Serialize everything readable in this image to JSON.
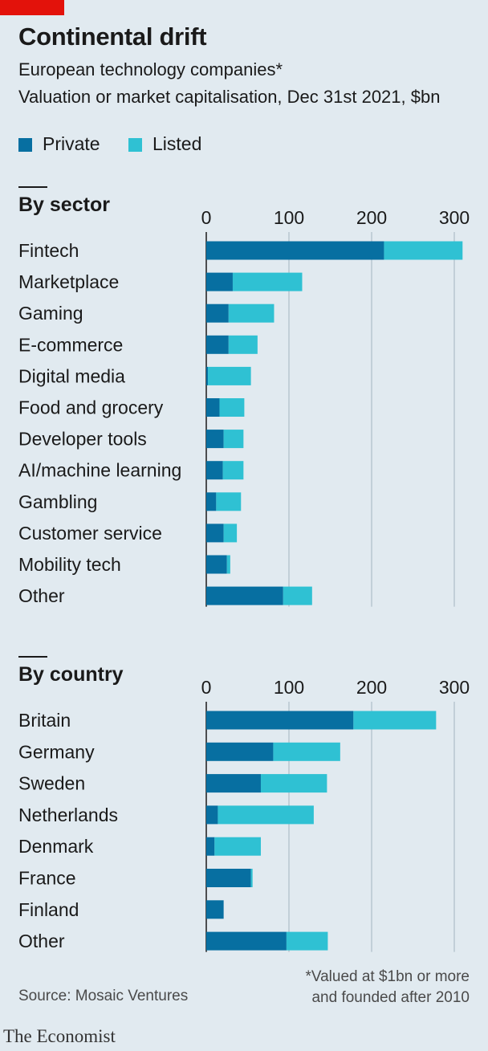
{
  "header": {
    "title": "Continental drift",
    "subtitle": "European technology companies*",
    "description": "Valuation or market capitalisation, Dec 31st 2021, $bn"
  },
  "legend": [
    {
      "label": "Private",
      "color": "#076fa1"
    },
    {
      "label": "Listed",
      "color": "#2fc1d3"
    }
  ],
  "footer": {
    "source": "Source: Mosaic Ventures",
    "footnote_line1": "*Valued at $1bn or more",
    "footnote_line2": "and founded after 2010",
    "logo": "The Economist"
  },
  "chart_data": [
    {
      "type": "bar",
      "orientation": "horizontal",
      "stacked": true,
      "title": "By sector",
      "categories": [
        "Fintech",
        "Marketplace",
        "Gaming",
        "E-commerce",
        "Digital media",
        "Food and grocery",
        "Developer tools",
        "AI/machine learning",
        "Gambling",
        "Customer service",
        "Mobility tech",
        "Other"
      ],
      "series": [
        {
          "name": "Private",
          "color": "#076fa1",
          "values": [
            215,
            32,
            27,
            27,
            2,
            16,
            21,
            20,
            12,
            21,
            25,
            93
          ]
        },
        {
          "name": "Listed",
          "color": "#2fc1d3",
          "values": [
            95,
            84,
            55,
            35,
            52,
            30,
            24,
            25,
            30,
            16,
            4,
            35
          ]
        }
      ],
      "xlim": [
        0,
        300
      ],
      "xticks": [
        0,
        100,
        200,
        300
      ],
      "grid": true
    },
    {
      "type": "bar",
      "orientation": "horizontal",
      "stacked": true,
      "title": "By country",
      "categories": [
        "Britain",
        "Germany",
        "Sweden",
        "Netherlands",
        "Denmark",
        "France",
        "Finland",
        "Other"
      ],
      "series": [
        {
          "name": "Private",
          "color": "#076fa1",
          "values": [
            178,
            81,
            66,
            14,
            10,
            54,
            21,
            97
          ]
        },
        {
          "name": "Listed",
          "color": "#2fc1d3",
          "values": [
            100,
            81,
            80,
            116,
            56,
            2,
            0,
            50
          ]
        }
      ],
      "xlim": [
        0,
        300
      ],
      "xticks": [
        0,
        100,
        200,
        300
      ],
      "grid": true
    }
  ]
}
